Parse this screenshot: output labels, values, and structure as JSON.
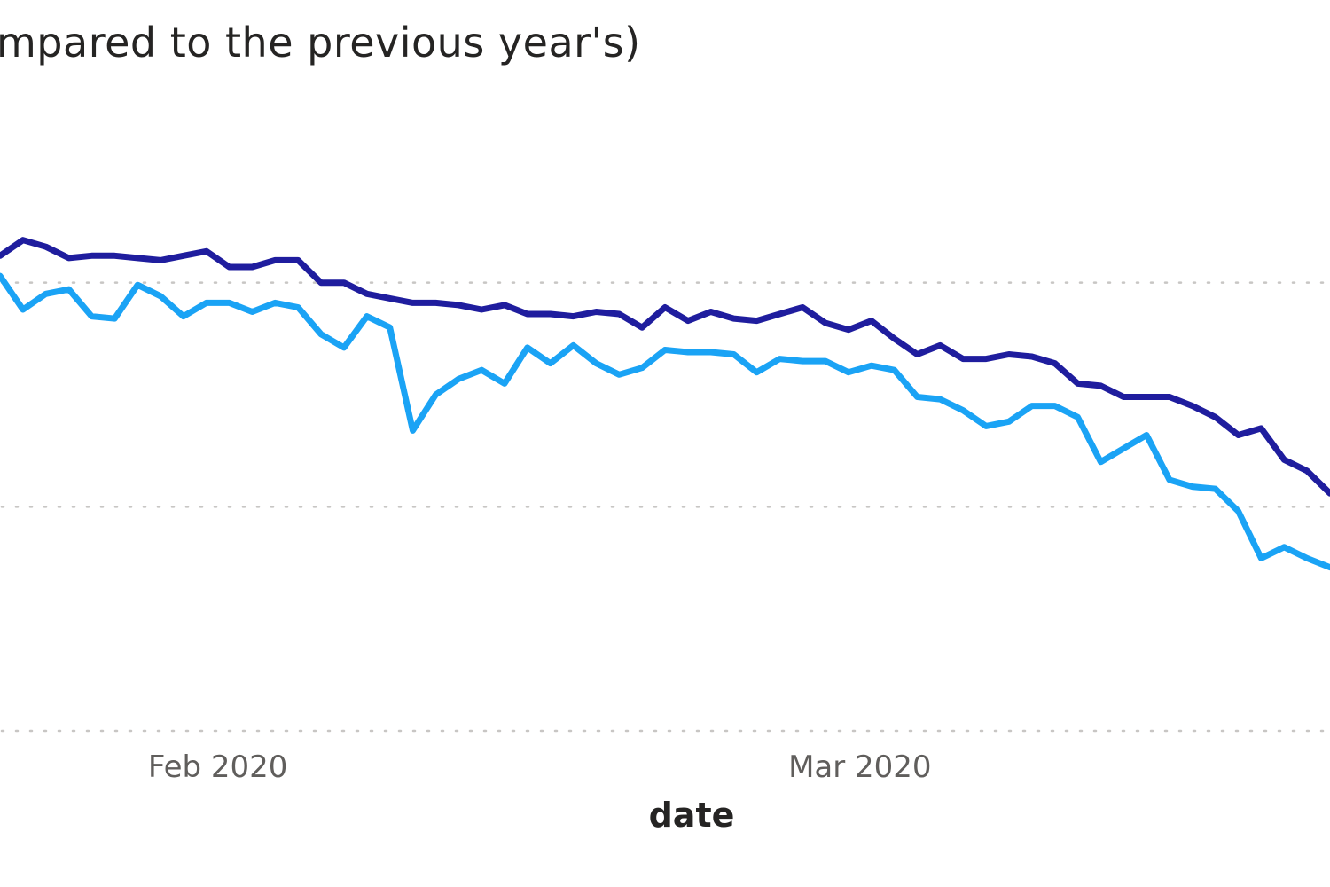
{
  "chart_data": {
    "type": "line",
    "title": "mpared to the previous year's)",
    "xlabel": "date",
    "ylabel": "",
    "x_tick_labels": [
      {
        "label": "Feb 2020",
        "day": 22
      },
      {
        "label": "Mar 2020",
        "day": 50
      }
    ],
    "x_range": [
      12.5,
      70.5
    ],
    "y_range": [
      0,
      3
    ],
    "grid": true,
    "series": [
      {
        "color": "#1f1d9e",
        "points": [
          [
            12.5,
            2.12
          ],
          [
            13.5,
            2.19
          ],
          [
            14.5,
            2.16
          ],
          [
            15.5,
            2.11
          ],
          [
            16.5,
            2.12
          ],
          [
            17.5,
            2.12
          ],
          [
            18.5,
            2.11
          ],
          [
            19.5,
            2.1
          ],
          [
            20.5,
            2.12
          ],
          [
            21.5,
            2.14
          ],
          [
            22.5,
            2.07
          ],
          [
            23.5,
            2.07
          ],
          [
            24.5,
            2.1
          ],
          [
            25.5,
            2.1
          ],
          [
            26.5,
            2.0
          ],
          [
            27.5,
            2.0
          ],
          [
            28.5,
            1.95
          ],
          [
            29.5,
            1.93
          ],
          [
            30.5,
            1.91
          ],
          [
            31.5,
            1.91
          ],
          [
            32.5,
            1.9
          ],
          [
            33.5,
            1.88
          ],
          [
            34.5,
            1.9
          ],
          [
            35.5,
            1.86
          ],
          [
            36.5,
            1.86
          ],
          [
            37.5,
            1.85
          ],
          [
            38.5,
            1.87
          ],
          [
            39.5,
            1.86
          ],
          [
            40.5,
            1.8
          ],
          [
            41.5,
            1.89
          ],
          [
            42.5,
            1.83
          ],
          [
            43.5,
            1.87
          ],
          [
            44.5,
            1.84
          ],
          [
            45.5,
            1.83
          ],
          [
            46.5,
            1.86
          ],
          [
            47.5,
            1.89
          ],
          [
            48.5,
            1.82
          ],
          [
            49.5,
            1.79
          ],
          [
            50.5,
            1.83
          ],
          [
            51.5,
            1.75
          ],
          [
            52.5,
            1.68
          ],
          [
            53.5,
            1.72
          ],
          [
            54.5,
            1.66
          ],
          [
            55.5,
            1.66
          ],
          [
            56.5,
            1.68
          ],
          [
            57.5,
            1.67
          ],
          [
            58.5,
            1.64
          ],
          [
            59.5,
            1.55
          ],
          [
            60.5,
            1.54
          ],
          [
            61.5,
            1.49
          ],
          [
            62.5,
            1.49
          ],
          [
            63.5,
            1.49
          ],
          [
            64.5,
            1.45
          ],
          [
            65.5,
            1.4
          ],
          [
            66.5,
            1.32
          ],
          [
            67.5,
            1.35
          ],
          [
            68.5,
            1.21
          ],
          [
            69.5,
            1.16
          ],
          [
            70.5,
            1.06
          ]
        ]
      },
      {
        "color": "#1aa3f5",
        "points": [
          [
            12.5,
            2.03
          ],
          [
            13.5,
            1.88
          ],
          [
            14.5,
            1.95
          ],
          [
            15.5,
            1.97
          ],
          [
            16.5,
            1.85
          ],
          [
            17.5,
            1.84
          ],
          [
            18.5,
            1.99
          ],
          [
            19.5,
            1.94
          ],
          [
            20.5,
            1.85
          ],
          [
            21.5,
            1.91
          ],
          [
            22.5,
            1.91
          ],
          [
            23.5,
            1.87
          ],
          [
            24.5,
            1.91
          ],
          [
            25.5,
            1.89
          ],
          [
            26.5,
            1.77
          ],
          [
            27.5,
            1.71
          ],
          [
            28.5,
            1.85
          ],
          [
            29.5,
            1.8
          ],
          [
            30.5,
            1.34
          ],
          [
            31.5,
            1.5
          ],
          [
            32.5,
            1.57
          ],
          [
            33.5,
            1.61
          ],
          [
            34.5,
            1.55
          ],
          [
            35.5,
            1.71
          ],
          [
            36.5,
            1.64
          ],
          [
            37.5,
            1.72
          ],
          [
            38.5,
            1.64
          ],
          [
            39.5,
            1.59
          ],
          [
            40.5,
            1.62
          ],
          [
            41.5,
            1.7
          ],
          [
            42.5,
            1.69
          ],
          [
            43.5,
            1.69
          ],
          [
            44.5,
            1.68
          ],
          [
            45.5,
            1.6
          ],
          [
            46.5,
            1.66
          ],
          [
            47.5,
            1.65
          ],
          [
            48.5,
            1.65
          ],
          [
            49.5,
            1.6
          ],
          [
            50.5,
            1.63
          ],
          [
            51.5,
            1.61
          ],
          [
            52.5,
            1.49
          ],
          [
            53.5,
            1.48
          ],
          [
            54.5,
            1.43
          ],
          [
            55.5,
            1.36
          ],
          [
            56.5,
            1.38
          ],
          [
            57.5,
            1.45
          ],
          [
            58.5,
            1.45
          ],
          [
            59.5,
            1.4
          ],
          [
            60.5,
            1.2
          ],
          [
            61.5,
            1.26
          ],
          [
            62.5,
            1.32
          ],
          [
            63.5,
            1.12
          ],
          [
            64.5,
            1.09
          ],
          [
            65.5,
            1.08
          ],
          [
            66.5,
            0.98
          ],
          [
            67.5,
            0.77
          ],
          [
            68.5,
            0.82
          ],
          [
            69.5,
            0.77
          ],
          [
            70.5,
            0.73
          ]
        ]
      }
    ]
  }
}
